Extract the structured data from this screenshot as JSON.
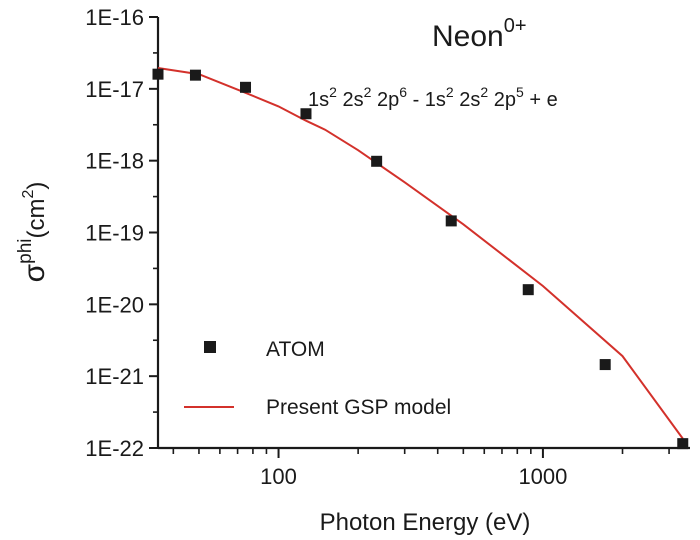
{
  "chart_data": {
    "type": "scatter",
    "title": "Neon",
    "title_superscript": "0+",
    "transition": {
      "initial": [
        "1s",
        "2",
        " 2s",
        "2",
        " 2p",
        "6",
        " -  "
      ],
      "final": [
        "1s",
        "2",
        " 2s",
        "2",
        " 2p",
        "5",
        " + e"
      ]
    },
    "xlabel": "Photon Energy (eV)",
    "ylabel_main": "σ",
    "ylabel_sup": "phi",
    "ylabel_unit": "(cm",
    "ylabel_unit_sup": "2",
    "ylabel_unit_close": ")",
    "x_scale": "log",
    "y_scale": "log",
    "xlim": [
      35,
      3600
    ],
    "ylim": [
      1e-22,
      1e-16
    ],
    "x_ticks": [
      100,
      1000
    ],
    "x_tick_labels": [
      "100",
      "1000"
    ],
    "y_ticks": [
      1e-22,
      1e-21,
      1e-20,
      1e-19,
      1e-18,
      1e-17,
      1e-16
    ],
    "y_tick_labels": [
      "1E-22",
      "1E-21",
      "1E-20",
      "1E-19",
      "1E-18",
      "1E-17",
      "1E-16"
    ],
    "legend_position": "bottom-left",
    "series": [
      {
        "name": "ATOM",
        "kind": "markers",
        "marker": "square",
        "color": "#1a1a1a",
        "x": [
          35,
          48.5,
          75,
          127,
          235,
          450,
          880,
          1720,
          3380
        ],
        "y": [
          1.6e-17,
          1.55e-17,
          1.05e-17,
          4.5e-18,
          9.8e-19,
          1.45e-19,
          1.6e-20,
          1.45e-21,
          1.15e-22
        ]
      },
      {
        "name": "Present GSP model",
        "kind": "line",
        "color": "#d3312b",
        "x": [
          35,
          50,
          75,
          100,
          127,
          150,
          200,
          300,
          500,
          1000,
          2000,
          3380
        ],
        "y": [
          1.95e-17,
          1.6e-17,
          8.8e-18,
          5.7e-18,
          3.6e-18,
          2.7e-18,
          1.4e-18,
          5e-19,
          1.3e-19,
          1.8e-20,
          1.9e-21,
          1.35e-22
        ]
      }
    ]
  }
}
